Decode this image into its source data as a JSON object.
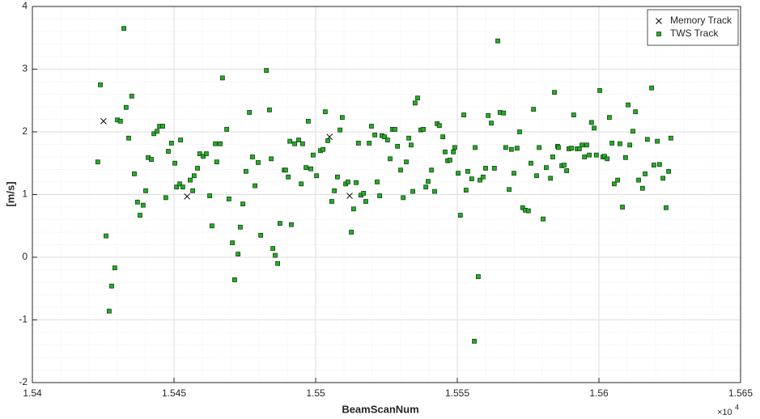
{
  "chart_data": {
    "type": "scatter",
    "xlabel": "BeamScanNum",
    "ylabel": "[m/s]",
    "x_multiplier_label": "×10",
    "x_multiplier_power": "4",
    "xlim": [
      1.54,
      1.565
    ],
    "xticks": [
      1.54,
      1.545,
      1.55,
      1.555,
      1.56,
      1.565
    ],
    "ylim": [
      -2,
      4
    ],
    "yticks": [
      -2,
      -1,
      0,
      1,
      2,
      3,
      4
    ],
    "grid": true,
    "minor_grid": true,
    "legend_corner": "top-right",
    "series": [
      {
        "name": "Memory Track",
        "marker": "x",
        "color": "#000000",
        "x": [
          1.54251,
          1.54546,
          1.55049,
          1.5512
        ],
        "values": [
          2.17,
          0.97,
          1.92,
          0.98
        ]
      },
      {
        "name": "TWS Track",
        "marker": "square",
        "color": "#21b021",
        "x": [
          1.54231,
          1.5424,
          1.5426,
          1.54271,
          1.5428,
          1.54291,
          1.543,
          1.54311,
          1.54323,
          1.54331,
          1.5434,
          1.54351,
          1.5436,
          1.54371,
          1.5438,
          1.54391,
          1.544,
          1.54409,
          1.5442,
          1.54429,
          1.5444,
          1.54449,
          1.5446,
          1.54471,
          1.5448,
          1.54491,
          1.54503,
          1.54509,
          1.5452,
          1.54523,
          1.54531,
          1.54557,
          1.54566,
          1.54571,
          1.54583,
          1.54591,
          1.54603,
          1.54614,
          1.54626,
          1.54634,
          1.54646,
          1.54651,
          1.54663,
          1.54671,
          1.54686,
          1.54694,
          1.54706,
          1.54714,
          1.54726,
          1.54734,
          1.54743,
          1.54754,
          1.54766,
          1.54777,
          1.54786,
          1.54797,
          1.54806,
          1.54826,
          1.54837,
          1.54843,
          1.54849,
          1.54857,
          1.54866,
          1.54874,
          1.54889,
          1.54894,
          1.54903,
          1.54909,
          1.54914,
          1.54926,
          1.5494,
          1.54949,
          1.54954,
          1.54966,
          1.54974,
          1.54983,
          1.54991,
          1.55003,
          1.55017,
          1.55026,
          1.55034,
          1.55043,
          1.55057,
          1.55066,
          1.55077,
          1.55086,
          1.55094,
          1.55106,
          1.55114,
          1.55126,
          1.55134,
          1.55143,
          1.55151,
          1.5516,
          1.55169,
          1.55177,
          1.55189,
          1.55197,
          1.55209,
          1.55217,
          1.55226,
          1.55234,
          1.55243,
          1.55254,
          1.55263,
          1.55271,
          1.5528,
          1.55289,
          1.553,
          1.55309,
          1.5532,
          1.55329,
          1.55337,
          1.55343,
          1.55351,
          1.5536,
          1.55371,
          1.5538,
          1.55389,
          1.55397,
          1.55409,
          1.5542,
          1.55429,
          1.55437,
          1.55449,
          1.55457,
          1.55466,
          1.55474,
          1.55486,
          1.55491,
          1.55503,
          1.55511,
          1.55523,
          1.55531,
          1.55537,
          1.55551,
          1.5556,
          1.55563,
          1.55574,
          1.5558,
          1.55591,
          1.556,
          1.55609,
          1.5562,
          1.55631,
          1.55643,
          1.55651,
          1.55663,
          1.55671,
          1.55683,
          1.55691,
          1.557,
          1.55711,
          1.5572,
          1.55731,
          1.5574,
          1.55751,
          1.5576,
          1.55769,
          1.5578,
          1.55789,
          1.55803,
          1.55814,
          1.55829,
          1.55837,
          1.55843,
          1.55854,
          1.55857,
          1.55869,
          1.55877,
          1.55886,
          1.55894,
          1.55903,
          1.55911,
          1.55923,
          1.55931,
          1.5594,
          1.55949,
          1.55957,
          1.55966,
          1.55974,
          1.55983,
          1.55991,
          1.56003,
          1.56014,
          1.5602,
          1.56029,
          1.56037,
          1.56046,
          1.56054,
          1.56066,
          1.56074,
          1.56083,
          1.56094,
          1.56103,
          1.56109,
          1.5612,
          1.56129,
          1.5614,
          1.56154,
          1.56163,
          1.56171,
          1.56186,
          1.56194,
          1.56206,
          1.56214,
          1.56226,
          1.56237,
          1.56246,
          1.56254
        ],
        "values": [
          1.52,
          2.75,
          0.34,
          -0.86,
          -0.46,
          -0.17,
          2.19,
          2.17,
          3.65,
          2.39,
          1.9,
          2.57,
          1.33,
          0.88,
          0.67,
          0.83,
          1.06,
          1.59,
          1.56,
          1.97,
          2.01,
          2.09,
          2.09,
          0.95,
          1.69,
          1.82,
          1.5,
          1.12,
          1.17,
          1.87,
          1.12,
          1.23,
          1.06,
          1.3,
          1.42,
          1.65,
          1.61,
          1.65,
          0.98,
          0.5,
          1.81,
          1.52,
          1.81,
          2.86,
          2.04,
          0.93,
          0.23,
          -0.36,
          0.05,
          0.48,
          0.85,
          1.37,
          2.31,
          1.6,
          1.14,
          1.51,
          0.35,
          2.98,
          2.35,
          1.57,
          0.14,
          0.03,
          -0.1,
          0.54,
          1.39,
          1.39,
          1.28,
          1.85,
          0.52,
          1.81,
          1.87,
          1.17,
          1.81,
          1.43,
          2.17,
          1.41,
          1.63,
          1.3,
          1.7,
          1.72,
          2.32,
          1.86,
          0.89,
          1.06,
          1.28,
          2.03,
          2.23,
          1.17,
          1.2,
          0.4,
          0.77,
          1.19,
          1.82,
          0.99,
          1.02,
          0.89,
          1.82,
          2.09,
          1.95,
          1.2,
          0.98,
          1.94,
          1.92,
          1.87,
          1.57,
          2.04,
          2.04,
          1.77,
          1.39,
          0.95,
          1.52,
          1.9,
          1.79,
          1.05,
          2.46,
          2.54,
          2.03,
          2.04,
          1.12,
          1.21,
          1.39,
          1.05,
          2.13,
          2.1,
          1.92,
          1.68,
          1.54,
          1.55,
          1.68,
          1.75,
          1.34,
          0.67,
          2.27,
          1.07,
          1.37,
          1.25,
          -1.34,
          1.75,
          -0.31,
          1.23,
          1.28,
          1.42,
          2.26,
          2.14,
          1.42,
          3.45,
          2.31,
          2.3,
          1.75,
          1.08,
          1.72,
          1.34,
          1.74,
          2.0,
          0.79,
          0.75,
          0.74,
          1.5,
          2.36,
          1.3,
          1.75,
          0.61,
          1.43,
          1.26,
          1.6,
          2.63,
          1.77,
          1.75,
          1.46,
          1.47,
          1.38,
          1.73,
          1.74,
          2.27,
          1.73,
          1.73,
          1.79,
          1.6,
          1.79,
          1.63,
          2.15,
          2.06,
          1.63,
          2.66,
          1.6,
          1.61,
          1.57,
          2.23,
          1.82,
          1.17,
          1.23,
          1.81,
          0.8,
          1.59,
          2.43,
          1.79,
          2.01,
          2.32,
          1.23,
          1.1,
          1.33,
          1.88,
          2.7,
          1.47,
          1.85,
          1.48,
          1.26,
          0.79,
          1.37,
          1.9
        ]
      }
    ]
  }
}
